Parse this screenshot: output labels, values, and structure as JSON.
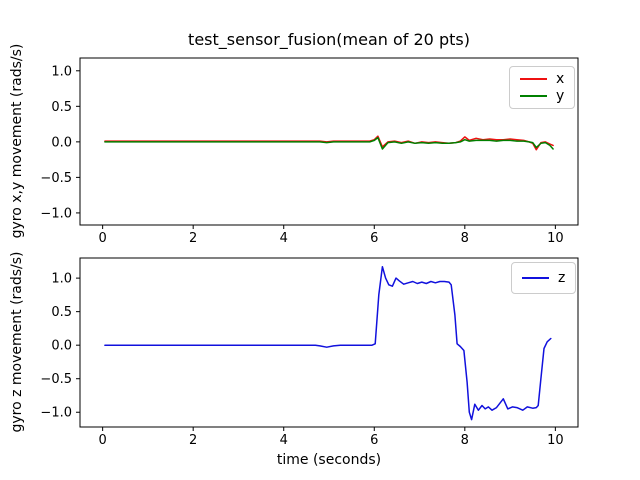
{
  "figure": {
    "background": "#ffffff",
    "spine_color": "#000000",
    "tick_label_color": "#000000"
  },
  "chart_data": [
    {
      "id": "top",
      "type": "line",
      "title": "test_sensor_fusion(mean of 20 pts)",
      "xlabel": "",
      "ylabel": "gyro x,y movement (rads/s)",
      "xlim": [
        -0.5,
        10.5
      ],
      "ylim": [
        -1.17,
        1.18
      ],
      "xticks": [
        0,
        2,
        4,
        6,
        8,
        10
      ],
      "xtick_labels": [
        "0",
        "2",
        "4",
        "6",
        "8",
        "10"
      ],
      "yticks": [
        1.0,
        0.5,
        0.0,
        -0.5,
        -1.0
      ],
      "ytick_labels": [
        "1.0",
        "0.5",
        "0.0",
        "−0.5",
        "−1.0"
      ],
      "grid": false,
      "legend": {
        "position": "upper right",
        "entries": [
          {
            "label": "x",
            "color": "#ee1111"
          },
          {
            "label": "y",
            "color": "#008000"
          }
        ]
      },
      "series": [
        {
          "name": "x",
          "color": "#ee1111",
          "points": [
            [
              0.05,
              0.01
            ],
            [
              0.5,
              0.01
            ],
            [
              1,
              0.01
            ],
            [
              1.5,
              0.01
            ],
            [
              2,
              0.01
            ],
            [
              2.5,
              0.01
            ],
            [
              3,
              0.01
            ],
            [
              3.5,
              0.01
            ],
            [
              4,
              0.01
            ],
            [
              4.5,
              0.01
            ],
            [
              4.8,
              0.01
            ],
            [
              4.95,
              0.0
            ],
            [
              5.1,
              0.01
            ],
            [
              5.5,
              0.01
            ],
            [
              5.9,
              0.01
            ],
            [
              6.0,
              0.03
            ],
            [
              6.08,
              0.08
            ],
            [
              6.18,
              -0.07
            ],
            [
              6.3,
              0.0
            ],
            [
              6.45,
              0.01
            ],
            [
              6.6,
              -0.01
            ],
            [
              6.75,
              0.01
            ],
            [
              6.9,
              -0.02
            ],
            [
              7.05,
              0.0
            ],
            [
              7.2,
              -0.01
            ],
            [
              7.35,
              0.0
            ],
            [
              7.5,
              -0.01
            ],
            [
              7.65,
              -0.02
            ],
            [
              7.8,
              -0.01
            ],
            [
              7.9,
              0.01
            ],
            [
              8.0,
              0.07
            ],
            [
              8.1,
              0.02
            ],
            [
              8.25,
              0.05
            ],
            [
              8.4,
              0.03
            ],
            [
              8.55,
              0.04
            ],
            [
              8.7,
              0.03
            ],
            [
              8.85,
              0.03
            ],
            [
              9.0,
              0.04
            ],
            [
              9.15,
              0.03
            ],
            [
              9.3,
              0.02
            ],
            [
              9.42,
              0.0
            ],
            [
              9.5,
              -0.02
            ],
            [
              9.58,
              -0.11
            ],
            [
              9.68,
              -0.01
            ],
            [
              9.78,
              0.0
            ],
            [
              9.88,
              -0.03
            ],
            [
              9.95,
              -0.05
            ]
          ]
        },
        {
          "name": "y",
          "color": "#008000",
          "points": [
            [
              0.05,
              0.0
            ],
            [
              0.5,
              0.0
            ],
            [
              1,
              0.0
            ],
            [
              1.5,
              0.0
            ],
            [
              2,
              0.0
            ],
            [
              2.5,
              0.0
            ],
            [
              3,
              0.0
            ],
            [
              3.5,
              0.0
            ],
            [
              4,
              0.0
            ],
            [
              4.5,
              0.0
            ],
            [
              4.8,
              0.0
            ],
            [
              4.95,
              -0.01
            ],
            [
              5.1,
              0.0
            ],
            [
              5.5,
              0.0
            ],
            [
              5.9,
              0.0
            ],
            [
              6.0,
              0.02
            ],
            [
              6.08,
              0.06
            ],
            [
              6.18,
              -0.1
            ],
            [
              6.3,
              -0.01
            ],
            [
              6.45,
              0.0
            ],
            [
              6.6,
              -0.02
            ],
            [
              6.75,
              0.0
            ],
            [
              6.9,
              -0.02
            ],
            [
              7.05,
              -0.01
            ],
            [
              7.2,
              -0.02
            ],
            [
              7.35,
              -0.01
            ],
            [
              7.5,
              -0.02
            ],
            [
              7.65,
              -0.02
            ],
            [
              7.8,
              -0.01
            ],
            [
              7.9,
              0.0
            ],
            [
              8.0,
              0.03
            ],
            [
              8.1,
              0.01
            ],
            [
              8.25,
              0.02
            ],
            [
              8.4,
              0.02
            ],
            [
              8.55,
              0.02
            ],
            [
              8.7,
              0.01
            ],
            [
              8.85,
              0.02
            ],
            [
              9.0,
              0.02
            ],
            [
              9.15,
              0.01
            ],
            [
              9.3,
              0.01
            ],
            [
              9.42,
              0.0
            ],
            [
              9.5,
              -0.01
            ],
            [
              9.58,
              -0.08
            ],
            [
              9.68,
              -0.02
            ],
            [
              9.78,
              -0.01
            ],
            [
              9.88,
              -0.05
            ],
            [
              9.95,
              -0.1
            ]
          ]
        }
      ]
    },
    {
      "id": "bottom",
      "type": "line",
      "title": "",
      "xlabel": "time (seconds)",
      "ylabel": "gyro z movement (rads/s)",
      "xlim": [
        -0.5,
        10.5
      ],
      "ylim": [
        -1.22,
        1.3
      ],
      "xticks": [
        0,
        2,
        4,
        6,
        8,
        10
      ],
      "xtick_labels": [
        "0",
        "2",
        "4",
        "6",
        "8",
        "10"
      ],
      "yticks": [
        1.0,
        0.5,
        0.0,
        -0.5,
        -1.0
      ],
      "ytick_labels": [
        "1.0",
        "0.5",
        "0.0",
        "−0.5",
        "−1.0"
      ],
      "grid": false,
      "legend": {
        "position": "upper right",
        "entries": [
          {
            "label": "z",
            "color": "#1111dd"
          }
        ]
      },
      "series": [
        {
          "name": "z",
          "color": "#1111dd",
          "points": [
            [
              0.05,
              0.0
            ],
            [
              0.5,
              0.0
            ],
            [
              1,
              0.0
            ],
            [
              1.5,
              0.0
            ],
            [
              2,
              0.0
            ],
            [
              2.5,
              0.0
            ],
            [
              3,
              0.0
            ],
            [
              3.5,
              0.0
            ],
            [
              4,
              0.0
            ],
            [
              4.4,
              0.0
            ],
            [
              4.7,
              0.0
            ],
            [
              4.8,
              -0.01
            ],
            [
              4.95,
              -0.03
            ],
            [
              5.1,
              -0.01
            ],
            [
              5.25,
              0.0
            ],
            [
              5.5,
              0.0
            ],
            [
              5.75,
              0.0
            ],
            [
              5.95,
              0.0
            ],
            [
              6.02,
              0.02
            ],
            [
              6.1,
              0.75
            ],
            [
              6.18,
              1.17
            ],
            [
              6.25,
              1.0
            ],
            [
              6.32,
              0.9
            ],
            [
              6.4,
              0.88
            ],
            [
              6.48,
              1.0
            ],
            [
              6.55,
              0.96
            ],
            [
              6.65,
              0.91
            ],
            [
              6.75,
              0.93
            ],
            [
              6.85,
              0.95
            ],
            [
              6.95,
              0.92
            ],
            [
              7.05,
              0.94
            ],
            [
              7.15,
              0.92
            ],
            [
              7.25,
              0.95
            ],
            [
              7.35,
              0.93
            ],
            [
              7.45,
              0.95
            ],
            [
              7.55,
              0.95
            ],
            [
              7.65,
              0.94
            ],
            [
              7.7,
              0.9
            ],
            [
              7.78,
              0.45
            ],
            [
              7.83,
              0.02
            ],
            [
              7.9,
              -0.02
            ],
            [
              7.98,
              -0.08
            ],
            [
              8.05,
              -0.55
            ],
            [
              8.1,
              -1.0
            ],
            [
              8.15,
              -1.11
            ],
            [
              8.22,
              -0.88
            ],
            [
              8.3,
              -0.97
            ],
            [
              8.38,
              -0.9
            ],
            [
              8.45,
              -0.95
            ],
            [
              8.52,
              -0.92
            ],
            [
              8.6,
              -0.97
            ],
            [
              8.7,
              -0.93
            ],
            [
              8.85,
              -0.8
            ],
            [
              8.95,
              -0.95
            ],
            [
              9.05,
              -0.92
            ],
            [
              9.15,
              -0.93
            ],
            [
              9.28,
              -0.97
            ],
            [
              9.38,
              -0.92
            ],
            [
              9.5,
              -0.94
            ],
            [
              9.58,
              -0.93
            ],
            [
              9.62,
              -0.9
            ],
            [
              9.68,
              -0.5
            ],
            [
              9.75,
              -0.05
            ],
            [
              9.82,
              0.05
            ],
            [
              9.9,
              0.1
            ]
          ]
        }
      ]
    }
  ]
}
